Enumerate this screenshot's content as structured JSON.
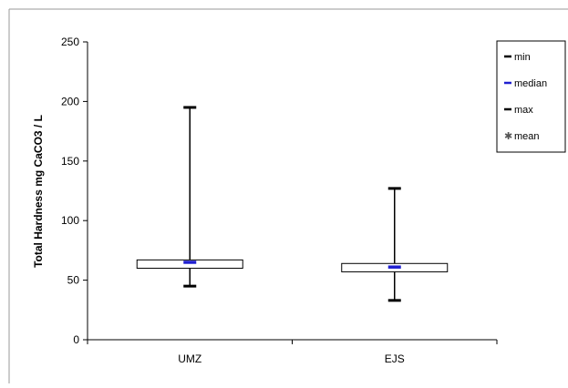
{
  "chart_data": {
    "type": "boxplot",
    "categories": [
      "UMZ",
      "EJS"
    ],
    "series": [
      {
        "category": "UMZ",
        "min": 45,
        "q1": 60,
        "median": 65,
        "q3": 67,
        "max": 195,
        "mean": 65
      },
      {
        "category": "EJS",
        "min": 33,
        "q1": 57,
        "median": 61,
        "q3": 64,
        "max": 127,
        "mean": 61
      }
    ],
    "ylabel": "Total Hardness mg CaCO3 / L",
    "ylim": [
      0,
      250
    ],
    "yticks": [
      "0",
      "50",
      "100",
      "150",
      "200",
      "250"
    ],
    "legend": {
      "placement": "right",
      "entries": [
        {
          "label": "min",
          "marker": "dash",
          "color": "#000000"
        },
        {
          "label": "median",
          "marker": "dash",
          "color": "#1f1fd0"
        },
        {
          "label": "max",
          "marker": "dash",
          "color": "#000000"
        },
        {
          "label": "mean",
          "marker": "star",
          "color": "#555555"
        }
      ]
    },
    "grid": false,
    "colors": {
      "axis": "#000000",
      "median": "#1f1fd0",
      "whisker": "#000000",
      "box_fill": "#ffffff",
      "frame": "#999999"
    }
  }
}
